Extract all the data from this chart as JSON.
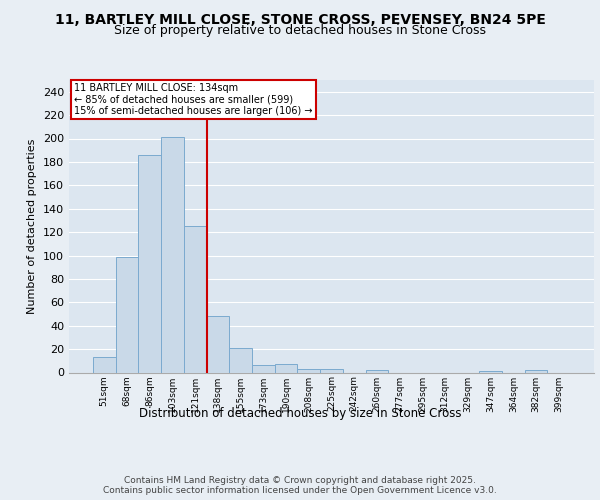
{
  "title_line1": "11, BARTLEY MILL CLOSE, STONE CROSS, PEVENSEY, BN24 5PE",
  "title_line2": "Size of property relative to detached houses in Stone Cross",
  "bar_labels": [
    "51sqm",
    "68sqm",
    "86sqm",
    "103sqm",
    "121sqm",
    "138sqm",
    "155sqm",
    "173sqm",
    "190sqm",
    "208sqm",
    "225sqm",
    "242sqm",
    "260sqm",
    "277sqm",
    "295sqm",
    "312sqm",
    "329sqm",
    "347sqm",
    "364sqm",
    "382sqm",
    "399sqm"
  ],
  "bar_values": [
    13,
    99,
    186,
    201,
    125,
    48,
    21,
    6,
    7,
    3,
    3,
    0,
    2,
    0,
    0,
    0,
    0,
    1,
    0,
    2,
    0
  ],
  "bar_color": "#c9d9e8",
  "bar_edgecolor": "#7baacf",
  "vline_index": 5,
  "vline_color": "#cc0000",
  "annotation_title": "11 BARTLEY MILL CLOSE: 134sqm",
  "annotation_line2": "← 85% of detached houses are smaller (599)",
  "annotation_line3": "15% of semi-detached houses are larger (106) →",
  "annotation_box_color": "#cc0000",
  "ylabel": "Number of detached properties",
  "xlabel": "Distribution of detached houses by size in Stone Cross",
  "footer": "Contains HM Land Registry data © Crown copyright and database right 2025.\nContains public sector information licensed under the Open Government Licence v3.0.",
  "ylim": [
    0,
    250
  ],
  "yticks": [
    0,
    20,
    40,
    60,
    80,
    100,
    120,
    140,
    160,
    180,
    200,
    220,
    240
  ],
  "bg_color": "#e8eef4",
  "plot_bg_color": "#dce6f0"
}
